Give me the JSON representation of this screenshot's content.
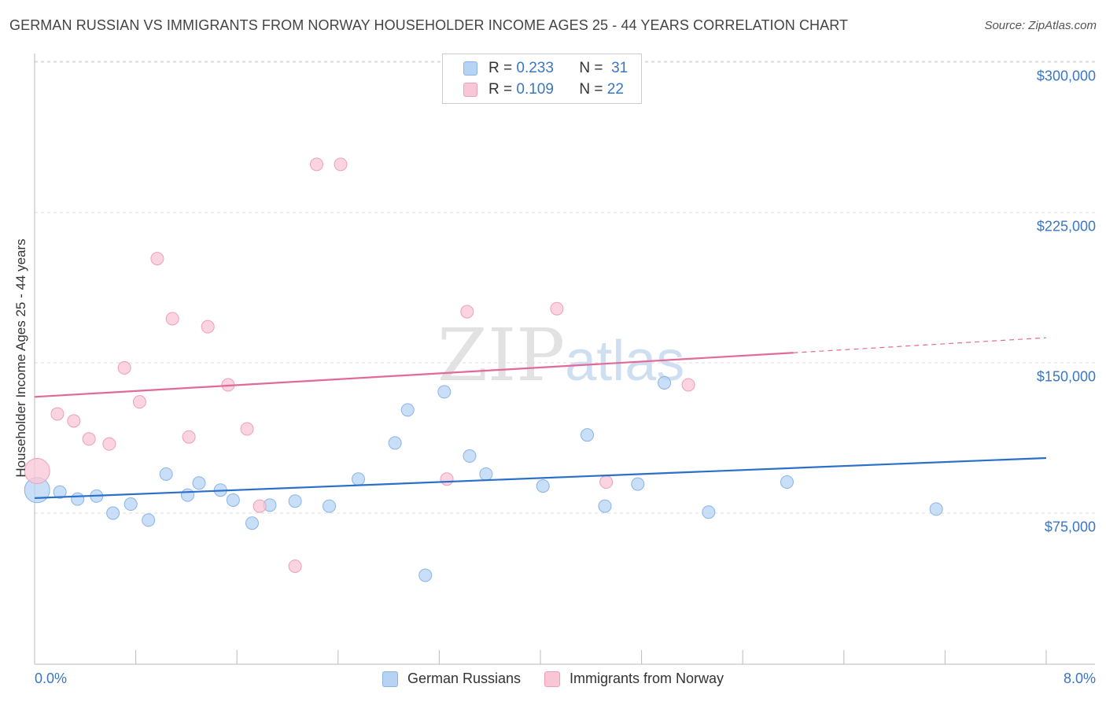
{
  "title": "GERMAN RUSSIAN VS IMMIGRANTS FROM NORWAY HOUSEHOLDER INCOME AGES 25 - 44 YEARS CORRELATION CHART",
  "source": "Source: ZipAtlas.com",
  "watermark": {
    "main": "ZIP",
    "sub": "atlas"
  },
  "legend_top": [
    {
      "r_label": "R =",
      "r_value": "0.233",
      "n_label": "N =",
      "n_value": "31"
    },
    {
      "r_label": "R =",
      "r_value": "0.109",
      "n_label": "N =",
      "n_value": "22"
    }
  ],
  "colors": {
    "blue_fill": "#b7d3f4",
    "blue_stroke": "#8ab4e6",
    "blue_line": "#2b6fcd",
    "pink_fill": "#f8c6d5",
    "pink_stroke": "#ef9fb8",
    "pink_line": "#e2699a",
    "accent_text": "#3b76c4"
  },
  "chart_data": {
    "type": "scatter",
    "title": "GERMAN RUSSIAN VS IMMIGRANTS FROM NORWAY HOUSEHOLDER INCOME AGES 25 - 44 YEARS CORRELATION CHART",
    "xlabel": "",
    "ylabel": "Householder Income Ages 25 - 44 years",
    "xlim": [
      0,
      8
    ],
    "ylim": [
      0,
      312000
    ],
    "x_tick_labels": [
      "0.0%",
      "8.0%"
    ],
    "y_ticks": [
      75000,
      150000,
      225000,
      300000
    ],
    "y_tick_labels": [
      "$75,000",
      "$150,000",
      "$225,000",
      "$300,000"
    ],
    "grid": true,
    "legend_position": "top-center",
    "series": [
      {
        "name": "German Russians",
        "color": "blue",
        "R": 0.233,
        "N": 31,
        "trend": {
          "x0": 0.0,
          "y0": 82500,
          "x1": 8.0,
          "y1": 102500
        },
        "points": [
          {
            "x": 0.02,
            "y": 86500,
            "big": true
          },
          {
            "x": 0.2,
            "y": 85500
          },
          {
            "x": 0.34,
            "y": 82000
          },
          {
            "x": 0.49,
            "y": 83500
          },
          {
            "x": 0.62,
            "y": 75000
          },
          {
            "x": 0.76,
            "y": 79500
          },
          {
            "x": 0.9,
            "y": 71500
          },
          {
            "x": 1.04,
            "y": 94500
          },
          {
            "x": 1.21,
            "y": 84000
          },
          {
            "x": 1.3,
            "y": 90000
          },
          {
            "x": 1.47,
            "y": 86500
          },
          {
            "x": 1.57,
            "y": 81500
          },
          {
            "x": 1.72,
            "y": 70000
          },
          {
            "x": 1.86,
            "y": 79000
          },
          {
            "x": 2.06,
            "y": 81000
          },
          {
            "x": 2.33,
            "y": 78500
          },
          {
            "x": 2.56,
            "y": 92000
          },
          {
            "x": 2.85,
            "y": 110000
          },
          {
            "x": 2.95,
            "y": 126500
          },
          {
            "x": 3.09,
            "y": 44000
          },
          {
            "x": 3.24,
            "y": 135500
          },
          {
            "x": 3.44,
            "y": 103500
          },
          {
            "x": 3.57,
            "y": 94500
          },
          {
            "x": 4.02,
            "y": 88500
          },
          {
            "x": 4.37,
            "y": 114000
          },
          {
            "x": 4.51,
            "y": 78500
          },
          {
            "x": 4.77,
            "y": 89500
          },
          {
            "x": 4.98,
            "y": 140000
          },
          {
            "x": 5.33,
            "y": 75500
          },
          {
            "x": 5.95,
            "y": 90500
          },
          {
            "x": 7.13,
            "y": 77000
          }
        ]
      },
      {
        "name": "Immigrants from Norway",
        "color": "pink",
        "R": 0.109,
        "N": 22,
        "trend": {
          "x0": 0.0,
          "y0": 133000,
          "x1": 6.0,
          "y1": 155000,
          "dash_to_x": 8.0,
          "dash_to_y": 162500
        },
        "points": [
          {
            "x": 0.02,
            "y": 96000,
            "big": true
          },
          {
            "x": 0.18,
            "y": 124500
          },
          {
            "x": 0.31,
            "y": 121000
          },
          {
            "x": 0.43,
            "y": 112000
          },
          {
            "x": 0.59,
            "y": 109500
          },
          {
            "x": 0.71,
            "y": 147500
          },
          {
            "x": 0.83,
            "y": 130500
          },
          {
            "x": 0.97,
            "y": 202000
          },
          {
            "x": 1.09,
            "y": 172000
          },
          {
            "x": 1.22,
            "y": 113000
          },
          {
            "x": 1.37,
            "y": 168000
          },
          {
            "x": 1.53,
            "y": 139000
          },
          {
            "x": 1.68,
            "y": 117000
          },
          {
            "x": 1.78,
            "y": 78500
          },
          {
            "x": 2.06,
            "y": 48500
          },
          {
            "x": 2.23,
            "y": 249000
          },
          {
            "x": 2.42,
            "y": 249000
          },
          {
            "x": 3.26,
            "y": 92000
          },
          {
            "x": 3.42,
            "y": 175500
          },
          {
            "x": 4.13,
            "y": 177000
          },
          {
            "x": 4.52,
            "y": 90500
          },
          {
            "x": 5.17,
            "y": 139000
          }
        ]
      }
    ]
  }
}
